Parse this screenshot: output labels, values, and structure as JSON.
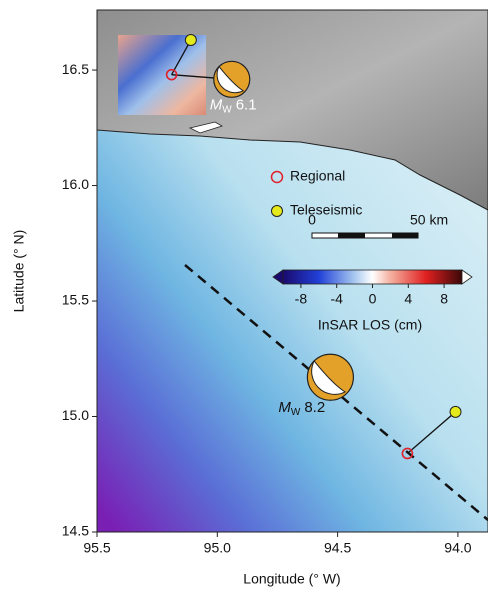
{
  "map": {
    "xlabel": "Longitude (° W)",
    "ylabel": "Latitude (° N)",
    "xlim": [
      95.5,
      93.875
    ],
    "ylim": [
      14.5,
      16.76
    ],
    "xticks": [
      95.5,
      {
        "value": 95,
        "label": "95.0"
      },
      94.5,
      {
        "value": 94,
        "label": "94.0"
      }
    ],
    "yticks": [
      14.5,
      {
        "value": 15,
        "label": "15.0"
      },
      15.5,
      {
        "value": 16,
        "label": "16.0"
      },
      16.5
    ],
    "legend": [
      {
        "name": "Regional",
        "color": "#e0202a"
      },
      {
        "name": "Teleseismic",
        "color": "#e4ea1c"
      }
    ],
    "events": [
      {
        "symbol": "M",
        "subscript": "W",
        "magnitude": 6.1,
        "regional": {
          "lon": 95.19,
          "lat": 16.48
        },
        "teleseismic": {
          "lon": 95.11,
          "lat": 16.63
        },
        "beachball": {
          "lon": 94.94,
          "lat": 16.46
        },
        "label_color": "#ffffff"
      },
      {
        "symbol": "M",
        "subscript": "W",
        "magnitude": 8.2,
        "regional": {
          "lon": 94.21,
          "lat": 14.84
        },
        "teleseismic": {
          "lon": 94.01,
          "lat": 15.02
        },
        "beachball": {
          "lon": 94.53,
          "lat": 15.17
        },
        "label_color": "#111111"
      }
    ],
    "scale_bar": {
      "start": 0,
      "end_label": "50 km"
    },
    "colorbar": {
      "label": "InSAR LOS (cm)",
      "lim": [
        -10,
        10
      ],
      "ticks": [
        -8,
        -4,
        0,
        4,
        8
      ]
    }
  }
}
